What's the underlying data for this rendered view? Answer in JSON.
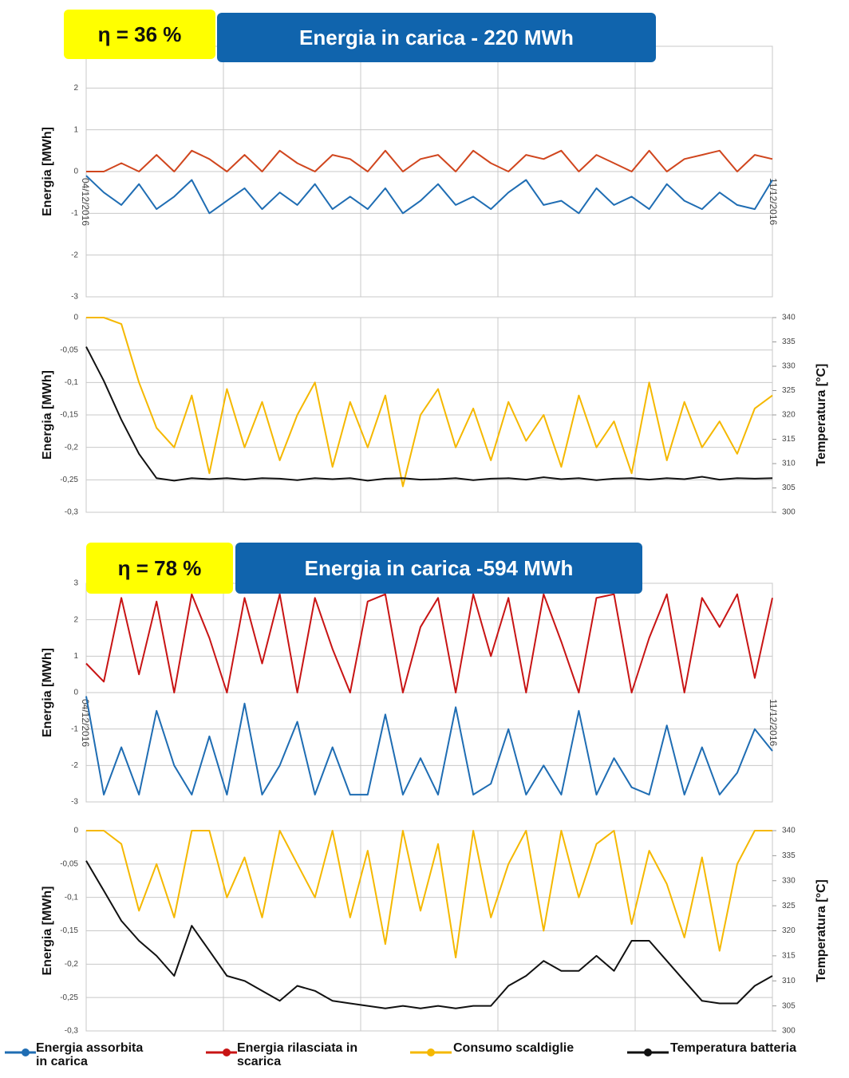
{
  "chart_data": [
    {
      "type": "line",
      "header": {
        "efficiency": "η = 36 %",
        "title": "Energia in carica - 220 MWh"
      },
      "ylabel": "Energia [MWh]",
      "x_labels": [
        "04/12/2016",
        "11/12/2016"
      ],
      "ylim": [
        -3,
        3
      ],
      "yticks": [
        -3,
        -2,
        -1,
        0,
        1,
        2
      ],
      "grid": true,
      "series": [
        {
          "color": "#1f6db3",
          "values": [
            -0.1,
            -0.5,
            -0.8,
            -0.3,
            -0.9,
            -0.6,
            -0.2,
            -1.0,
            -0.7,
            -0.4,
            -0.9,
            -0.5,
            -0.8,
            -0.3,
            -0.9,
            -0.6,
            -0.9,
            -0.4,
            -1.0,
            -0.7,
            -0.3,
            -0.8,
            -0.6,
            -0.9,
            -0.5,
            -0.2,
            -0.8,
            -0.7,
            -1.0,
            -0.4,
            -0.8,
            -0.6,
            -0.9,
            -0.3,
            -0.7,
            -0.9,
            -0.5,
            -0.8,
            -0.9,
            -0.2
          ]
        },
        {
          "color": "#d0461e",
          "values": [
            0,
            0,
            0.2,
            0,
            0.4,
            0,
            0.5,
            0.3,
            0,
            0.4,
            0,
            0.5,
            0.2,
            0,
            0.4,
            0.3,
            0,
            0.5,
            0,
            0.3,
            0.4,
            0,
            0.5,
            0.2,
            0,
            0.4,
            0.3,
            0.5,
            0,
            0.4,
            0.2,
            0,
            0.5,
            0,
            0.3,
            0.4,
            0.5,
            0,
            0.4,
            0.3
          ]
        }
      ]
    },
    {
      "type": "line",
      "ylabel": "Energia [MWh]",
      "y2label": "Temperatura [°C]",
      "ylim": [
        -0.3,
        0
      ],
      "yticks": [
        {
          "value": -0.3,
          "label": "-0,3"
        },
        {
          "value": -0.25,
          "label": "-0,25"
        },
        {
          "value": -0.2,
          "label": "-0,2"
        },
        {
          "value": -0.15,
          "label": "-0,15"
        },
        {
          "value": -0.1,
          "label": "-0,1"
        },
        {
          "value": -0.05,
          "label": "-0,05"
        },
        0
      ],
      "y2lim": [
        300,
        340
      ],
      "y2ticks": [
        300,
        305,
        310,
        315,
        320,
        325,
        330,
        335,
        340
      ],
      "grid": true,
      "series": [
        {
          "color": "#f5b800",
          "values": [
            0,
            0,
            -0.01,
            -0.1,
            -0.17,
            -0.2,
            -0.12,
            -0.24,
            -0.11,
            -0.2,
            -0.13,
            -0.22,
            -0.15,
            -0.1,
            -0.23,
            -0.13,
            -0.2,
            -0.12,
            -0.26,
            -0.15,
            -0.11,
            -0.2,
            -0.14,
            -0.22,
            -0.13,
            -0.19,
            -0.15,
            -0.23,
            -0.12,
            -0.2,
            -0.16,
            -0.24,
            -0.1,
            -0.22,
            -0.13,
            -0.2,
            -0.16,
            -0.21,
            -0.14,
            -0.12
          ]
        },
        {
          "color": "#111111",
          "axis": "y2",
          "values": [
            334,
            327,
            319,
            312,
            307,
            306.5,
            307,
            306.8,
            307,
            306.7,
            307,
            306.9,
            306.6,
            307,
            306.8,
            307,
            306.5,
            306.9,
            307,
            306.7,
            306.8,
            307,
            306.6,
            306.9,
            307,
            306.7,
            307.2,
            306.8,
            307,
            306.6,
            306.9,
            307,
            306.7,
            307,
            306.8,
            307.3,
            306.7,
            307,
            306.9,
            307
          ]
        }
      ]
    },
    {
      "type": "line",
      "header": {
        "efficiency": "η = 78 %",
        "title": "Energia in carica -594 MWh"
      },
      "ylabel": "Energia [MWh]",
      "x_labels": [
        "04/12/2016",
        "11/12/2016"
      ],
      "ylim": [
        -3,
        3
      ],
      "yticks": [
        -3,
        -2,
        -1,
        0,
        1,
        2,
        3
      ],
      "grid": true,
      "series": [
        {
          "color": "#1f6db3",
          "values": [
            -0.1,
            -2.8,
            -1.5,
            -2.8,
            -0.5,
            -2.0,
            -2.8,
            -1.2,
            -2.8,
            -0.3,
            -2.8,
            -2.0,
            -0.8,
            -2.8,
            -1.5,
            -2.8,
            -2.8,
            -0.6,
            -2.8,
            -1.8,
            -2.8,
            -0.4,
            -2.8,
            -2.5,
            -1.0,
            -2.8,
            -2.0,
            -2.8,
            -0.5,
            -2.8,
            -1.8,
            -2.6,
            -2.8,
            -0.9,
            -2.8,
            -1.5,
            -2.8,
            -2.2,
            -1.0,
            -1.6
          ]
        },
        {
          "color": "#c81414",
          "values": [
            0.8,
            0.3,
            2.6,
            0.5,
            2.5,
            0,
            2.7,
            1.5,
            0,
            2.6,
            0.8,
            2.7,
            0,
            2.6,
            1.2,
            0,
            2.5,
            2.7,
            0,
            1.8,
            2.6,
            0,
            2.7,
            1.0,
            2.6,
            0,
            2.7,
            1.4,
            0,
            2.6,
            2.7,
            0,
            1.5,
            2.7,
            0,
            2.6,
            1.8,
            2.7,
            0.4,
            2.6
          ]
        }
      ]
    },
    {
      "type": "line",
      "ylabel": "Energia [MWh]",
      "y2label": "Temperatura [°C]",
      "ylim": [
        -0.3,
        0
      ],
      "yticks": [
        {
          "value": -0.3,
          "label": "-0,3"
        },
        {
          "value": -0.25,
          "label": "-0,25"
        },
        {
          "value": -0.2,
          "label": "-0,2"
        },
        {
          "value": -0.15,
          "label": "-0,15"
        },
        {
          "value": -0.1,
          "label": "-0,1"
        },
        {
          "value": -0.05,
          "label": "-0,05"
        },
        0
      ],
      "y2lim": [
        300,
        340
      ],
      "y2ticks": [
        300,
        305,
        310,
        315,
        320,
        325,
        330,
        335,
        340
      ],
      "grid": true,
      "series": [
        {
          "color": "#f5b800",
          "values": [
            0,
            0,
            -0.02,
            -0.12,
            -0.05,
            -0.13,
            0,
            0,
            -0.1,
            -0.04,
            -0.13,
            0,
            -0.05,
            -0.1,
            0,
            -0.13,
            -0.03,
            -0.17,
            0,
            -0.12,
            -0.02,
            -0.19,
            0,
            -0.13,
            -0.05,
            0,
            -0.15,
            0,
            -0.1,
            -0.02,
            0,
            -0.14,
            -0.03,
            -0.08,
            -0.16,
            -0.04,
            -0.18,
            -0.05,
            0,
            0
          ]
        },
        {
          "color": "#111111",
          "axis": "y2",
          "values": [
            334,
            328,
            322,
            318,
            315,
            311,
            321,
            316,
            311,
            310,
            308,
            306,
            309,
            308,
            306,
            305.5,
            305,
            304.5,
            305,
            304.5,
            305,
            304.5,
            305,
            305,
            309,
            311,
            314,
            312,
            312,
            315,
            312,
            318,
            318,
            314,
            310,
            306,
            305.5,
            305.5,
            309,
            311
          ]
        }
      ]
    }
  ],
  "legend": [
    {
      "label": "Energia assorbita in carica",
      "color": "#1f6db3"
    },
    {
      "label": "Energia rilasciata in scarica",
      "color": "#c81414"
    },
    {
      "label": "Consumo scaldiglie",
      "color": "#f5b800"
    },
    {
      "label": "Temperatura batteria",
      "color": "#111111"
    }
  ]
}
